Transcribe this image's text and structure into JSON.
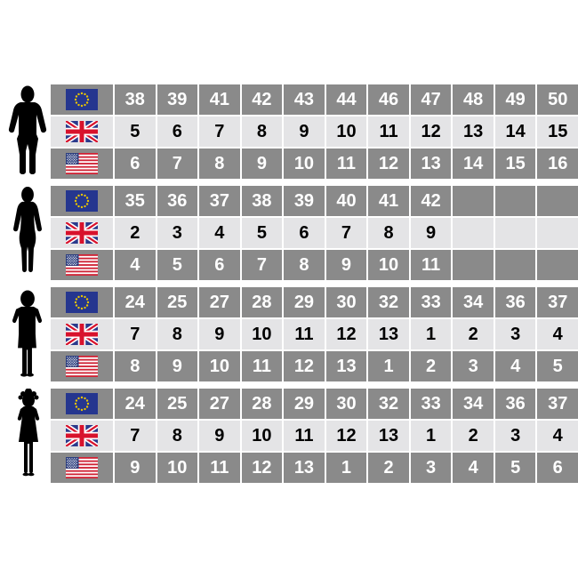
{
  "colors": {
    "background": "#ffffff",
    "cell_dark": "#8a8a8a",
    "cell_light": "#e4e4e6",
    "text_on_dark": "#ffffff",
    "text_on_light": "#000000",
    "silhouette": "#000000",
    "eu_flag_blue": "#25368f",
    "star_yellow": "#e8c400",
    "uk_flag_blue": "#2b3a8c",
    "flag_red": "#d8122c",
    "us_flag_blue": "#2c3e7e",
    "us_flag_red": "#cf2436"
  },
  "chart_data": {
    "type": "table",
    "columns_per_row": 11,
    "sections": [
      {
        "person": "man",
        "icon": "man-silhouette-icon",
        "rows": [
          {
            "region": "EU",
            "flag": "eu-flag",
            "shade": "dark",
            "values": [
              "38",
              "39",
              "41",
              "42",
              "43",
              "44",
              "46",
              "47",
              "48",
              "49",
              "50"
            ]
          },
          {
            "region": "UK",
            "flag": "uk-flag",
            "shade": "light",
            "values": [
              "5",
              "6",
              "7",
              "8",
              "9",
              "10",
              "11",
              "12",
              "13",
              "14",
              "15"
            ]
          },
          {
            "region": "US",
            "flag": "us-flag",
            "shade": "dark",
            "values": [
              "6",
              "7",
              "8",
              "9",
              "10",
              "11",
              "12",
              "13",
              "14",
              "15",
              "16"
            ]
          }
        ]
      },
      {
        "person": "woman",
        "icon": "woman-silhouette-icon",
        "rows": [
          {
            "region": "EU",
            "flag": "eu-flag",
            "shade": "dark",
            "values": [
              "35",
              "36",
              "37",
              "38",
              "39",
              "40",
              "41",
              "42",
              "",
              "",
              ""
            ]
          },
          {
            "region": "UK",
            "flag": "uk-flag",
            "shade": "light",
            "values": [
              "2",
              "3",
              "4",
              "5",
              "6",
              "7",
              "8",
              "9",
              "",
              "",
              ""
            ]
          },
          {
            "region": "US",
            "flag": "us-flag",
            "shade": "dark",
            "values": [
              "4",
              "5",
              "6",
              "7",
              "8",
              "9",
              "10",
              "11",
              "",
              "",
              ""
            ]
          }
        ]
      },
      {
        "person": "boy",
        "icon": "boy-silhouette-icon",
        "rows": [
          {
            "region": "EU",
            "flag": "eu-flag",
            "shade": "dark",
            "values": [
              "24",
              "25",
              "27",
              "28",
              "29",
              "30",
              "32",
              "33",
              "34",
              "36",
              "37"
            ]
          },
          {
            "region": "UK",
            "flag": "uk-flag",
            "shade": "light",
            "values": [
              "7",
              "8",
              "9",
              "10",
              "11",
              "12",
              "13",
              "1",
              "2",
              "3",
              "4"
            ]
          },
          {
            "region": "US",
            "flag": "us-flag",
            "shade": "dark",
            "values": [
              "8",
              "9",
              "10",
              "11",
              "12",
              "13",
              "1",
              "2",
              "3",
              "4",
              "5"
            ]
          }
        ]
      },
      {
        "person": "girl",
        "icon": "girl-silhouette-icon",
        "rows": [
          {
            "region": "EU",
            "flag": "eu-flag",
            "shade": "dark",
            "values": [
              "24",
              "25",
              "27",
              "28",
              "29",
              "30",
              "32",
              "33",
              "34",
              "36",
              "37"
            ]
          },
          {
            "region": "UK",
            "flag": "uk-flag",
            "shade": "light",
            "values": [
              "7",
              "8",
              "9",
              "10",
              "11",
              "12",
              "13",
              "1",
              "2",
              "3",
              "4"
            ]
          },
          {
            "region": "US",
            "flag": "us-flag",
            "shade": "dark",
            "values": [
              "9",
              "10",
              "11",
              "12",
              "13",
              "1",
              "2",
              "3",
              "4",
              "5",
              "6"
            ]
          }
        ]
      }
    ]
  }
}
